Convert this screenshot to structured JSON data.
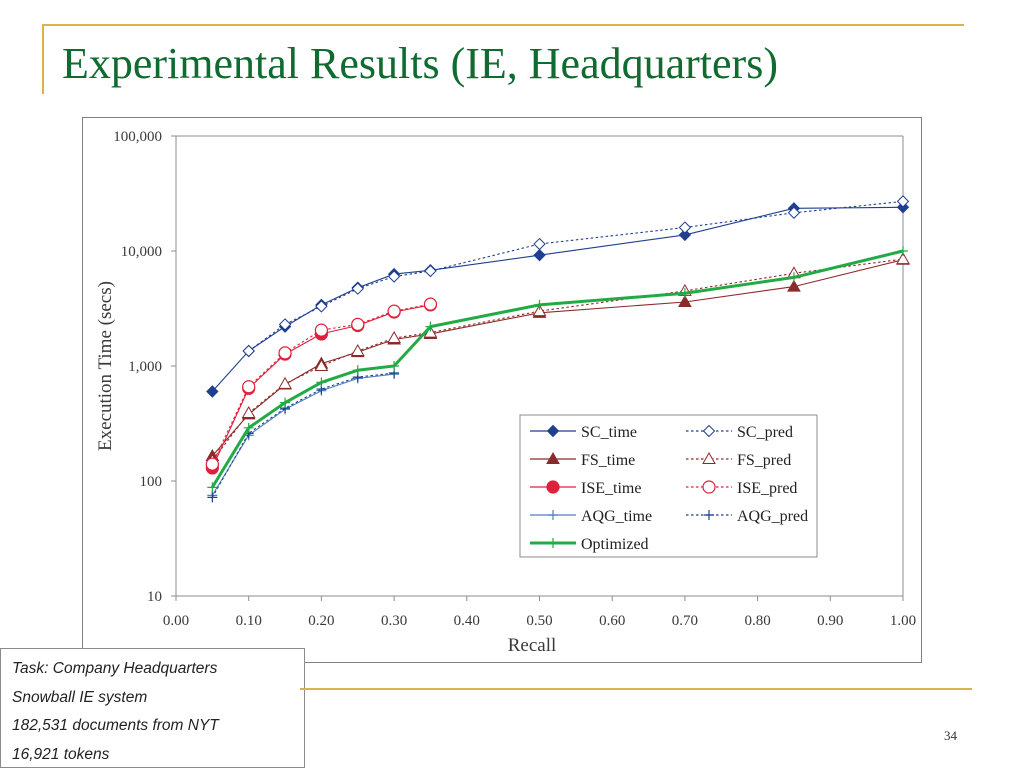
{
  "slide": {
    "title": "Experimental Results (IE, Headquarters)",
    "task_lines": [
      "Task: Company Headquarters",
      "Snowball IE system",
      "182,531 documents from NYT",
      "16,921 tokens"
    ],
    "page_number": "34"
  },
  "chart_data": {
    "type": "line",
    "title": "",
    "xlabel": "Recall",
    "ylabel": "Execution Time (secs)",
    "xlim": [
      0,
      1
    ],
    "ylim": [
      10,
      100000
    ],
    "yscale": "log",
    "grid": false,
    "legend_position": "bottom-right",
    "x_ticks": [
      0,
      0.1,
      0.2,
      0.3,
      0.4,
      0.5,
      0.6,
      0.7,
      0.8,
      0.9,
      1.0
    ],
    "x_tick_labels": [
      "0.00",
      "0.10",
      "0.20",
      "0.30",
      "0.40",
      "0.50",
      "0.60",
      "0.70",
      "0.80",
      "0.90",
      "1.00"
    ],
    "y_ticks": [
      10,
      100,
      1000,
      10000,
      100000
    ],
    "y_tick_labels": [
      "10",
      "100",
      "1,000",
      "10,000",
      "100,000"
    ],
    "series": [
      {
        "name": "SC_time",
        "color": "#1f3f8f",
        "dash": "solid",
        "marker": "diamond",
        "filled": true,
        "points": [
          [
            0.05,
            600
          ],
          [
            0.1,
            1350
          ],
          [
            0.15,
            2200
          ],
          [
            0.2,
            3400
          ],
          [
            0.25,
            4800
          ],
          [
            0.3,
            6300
          ],
          [
            0.35,
            6800
          ],
          [
            0.5,
            9200
          ],
          [
            0.7,
            13800
          ],
          [
            0.85,
            23500
          ],
          [
            1.0,
            24000
          ]
        ]
      },
      {
        "name": "SC_pred",
        "color": "#1f3f8f",
        "dash": "dotted",
        "marker": "diamond",
        "filled": false,
        "points": [
          [
            0.1,
            1350
          ],
          [
            0.15,
            2300
          ],
          [
            0.2,
            3300
          ],
          [
            0.25,
            4700
          ],
          [
            0.3,
            6000
          ],
          [
            0.35,
            6700
          ],
          [
            0.5,
            11500
          ],
          [
            0.7,
            16000
          ],
          [
            0.85,
            21500
          ],
          [
            1.0,
            27000
          ]
        ]
      },
      {
        "name": "FS_time",
        "color": "#8b2a2a",
        "dash": "solid",
        "marker": "triangle",
        "filled": true,
        "points": [
          [
            0.05,
            165
          ],
          [
            0.1,
            380
          ],
          [
            0.15,
            690
          ],
          [
            0.2,
            1050
          ],
          [
            0.25,
            1320
          ],
          [
            0.3,
            1700
          ],
          [
            0.35,
            1900
          ],
          [
            0.5,
            2900
          ],
          [
            0.7,
            3600
          ],
          [
            0.85,
            4900
          ],
          [
            1.0,
            8400
          ]
        ]
      },
      {
        "name": "FS_pred",
        "color": "#8b2a2a",
        "dash": "dotted",
        "marker": "triangle",
        "filled": false,
        "points": [
          [
            0.05,
            150
          ],
          [
            0.1,
            390
          ],
          [
            0.15,
            700
          ],
          [
            0.2,
            1000
          ],
          [
            0.25,
            1350
          ],
          [
            0.3,
            1750
          ],
          [
            0.35,
            1950
          ],
          [
            0.5,
            3000
          ],
          [
            0.7,
            4500
          ],
          [
            0.85,
            6400
          ],
          [
            1.0,
            8500
          ]
        ]
      },
      {
        "name": "ISE_time",
        "color": "#e0203a",
        "dash": "solid",
        "marker": "circle",
        "filled": true,
        "points": [
          [
            0.05,
            130
          ],
          [
            0.1,
            640
          ],
          [
            0.15,
            1270
          ],
          [
            0.2,
            1900
          ],
          [
            0.25,
            2250
          ],
          [
            0.3,
            2950
          ],
          [
            0.35,
            3400
          ]
        ]
      },
      {
        "name": "ISE_pred",
        "color": "#e0203a",
        "dash": "dotted",
        "marker": "circle",
        "filled": false,
        "points": [
          [
            0.05,
            140
          ],
          [
            0.1,
            660
          ],
          [
            0.15,
            1300
          ],
          [
            0.2,
            2050
          ],
          [
            0.25,
            2300
          ],
          [
            0.3,
            3000
          ],
          [
            0.35,
            3450
          ]
        ]
      },
      {
        "name": "AQG_time",
        "color": "#4f7fbf",
        "dash": "solid",
        "marker": "plus",
        "filled": true,
        "points": [
          [
            0.05,
            75
          ],
          [
            0.1,
            250
          ],
          [
            0.15,
            420
          ],
          [
            0.2,
            610
          ],
          [
            0.25,
            780
          ],
          [
            0.3,
            850
          ]
        ]
      },
      {
        "name": "AQG_pred",
        "color": "#1f3f8f",
        "dash": "dotted",
        "marker": "plus",
        "filled": false,
        "points": [
          [
            0.05,
            72
          ],
          [
            0.1,
            260
          ],
          [
            0.15,
            430
          ],
          [
            0.2,
            630
          ],
          [
            0.25,
            800
          ],
          [
            0.3,
            870
          ]
        ]
      },
      {
        "name": "Optimized",
        "color": "#22aa44",
        "dash": "solid",
        "marker": "plus",
        "filled": true,
        "width": 3,
        "points": [
          [
            0.05,
            88
          ],
          [
            0.1,
            290
          ],
          [
            0.15,
            480
          ],
          [
            0.2,
            720
          ],
          [
            0.25,
            920
          ],
          [
            0.3,
            1000
          ],
          [
            0.35,
            2200
          ],
          [
            0.5,
            3400
          ],
          [
            0.7,
            4300
          ],
          [
            0.85,
            5900
          ],
          [
            1.0,
            10000
          ]
        ]
      }
    ]
  }
}
